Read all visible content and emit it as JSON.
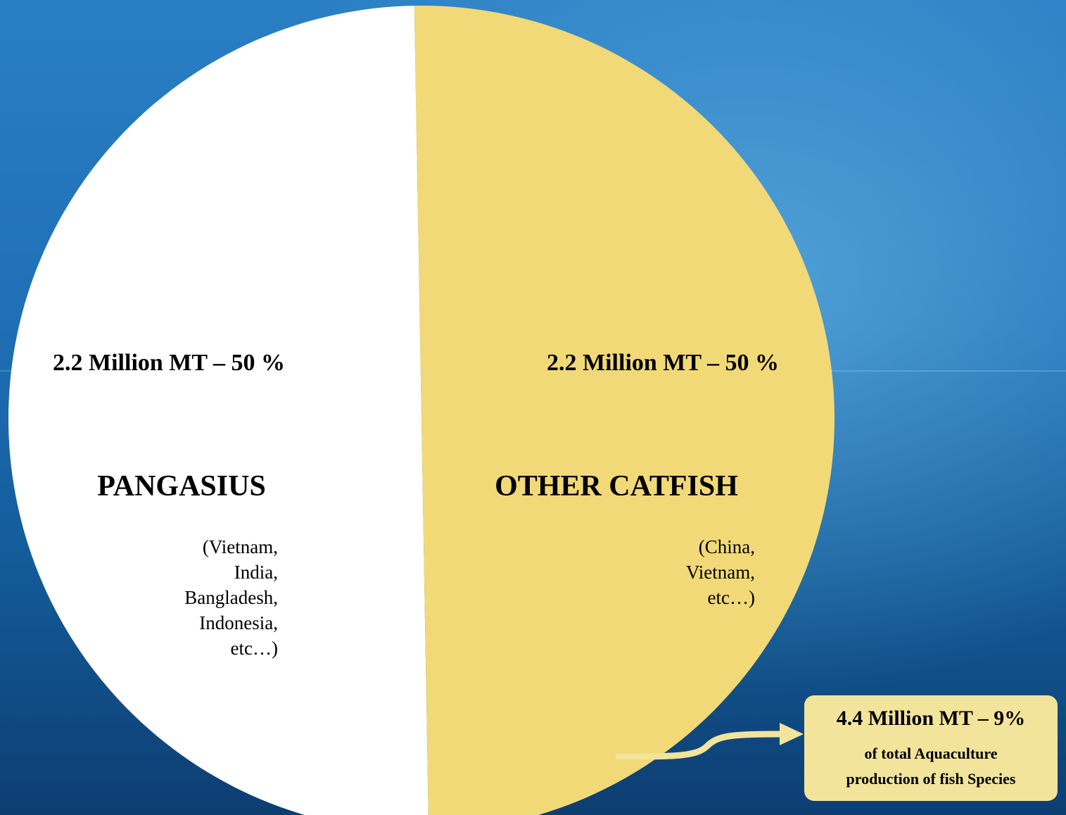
{
  "chart_data": {
    "type": "pie",
    "categories": [
      "PANGASIUS",
      "OTHER CATFISH"
    ],
    "values": [
      50,
      50
    ],
    "value_labels": [
      "2.2 Million MT – 50 %",
      "2.2 Million MT – 50 %"
    ],
    "colors": [
      "#ffffff",
      "#f2d977"
    ],
    "category_notes": [
      [
        "(Vietnam,",
        "India,",
        "Bangladesh,",
        "Indonesia,",
        "etc…)"
      ],
      [
        "(China,",
        "Vietnam,",
        "etc…)"
      ]
    ],
    "callout": [
      "4.4 Million MT – 9%",
      "of total Aquaculture",
      "production of fish Species"
    ]
  }
}
